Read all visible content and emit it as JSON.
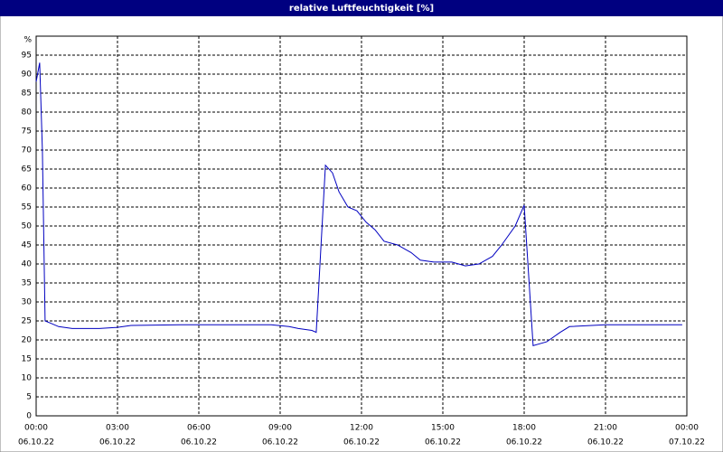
{
  "chart_data": {
    "type": "line",
    "title": "relative Luftfeuchtigkeit [%]",
    "y_unit": "%",
    "x": [
      0,
      0.13,
      0.23,
      0.33,
      0.5,
      0.83,
      1.33,
      2.33,
      3,
      3.5,
      5.33,
      8.67,
      9.33,
      9.67,
      10.17,
      10.33,
      10.67,
      10.93,
      11.17,
      11.5,
      11.83,
      12.17,
      12.5,
      12.83,
      13.33,
      13.83,
      14.17,
      14.67,
      15.33,
      15.83,
      16.33,
      16.83,
      17.17,
      17.67,
      18,
      18.33,
      18.83,
      19.33,
      19.67,
      21,
      23.83
    ],
    "series": [
      {
        "name": "relative Luftfeuchtigkeit",
        "color": "#0000c0",
        "values": [
          88,
          93,
          70,
          25,
          24.5,
          23.5,
          23,
          23,
          23.3,
          23.8,
          24,
          24,
          23.5,
          23,
          22.5,
          22,
          66,
          64,
          59,
          55,
          54,
          51,
          49,
          46,
          45,
          43,
          41,
          40.5,
          40.5,
          39.5,
          40,
          42,
          45,
          50,
          55.5,
          18.5,
          19.5,
          22,
          23.5,
          24,
          24
        ]
      }
    ],
    "xlim": [
      0,
      24
    ],
    "ylim": [
      0,
      100
    ],
    "xticks": [
      {
        "value": 0,
        "label": "00:00",
        "date": "06.10.22"
      },
      {
        "value": 3,
        "label": "03:00",
        "date": "06.10.22"
      },
      {
        "value": 6,
        "label": "06:00",
        "date": "06.10.22"
      },
      {
        "value": 9,
        "label": "09:00",
        "date": "06.10.22"
      },
      {
        "value": 12,
        "label": "12:00",
        "date": "06.10.22"
      },
      {
        "value": 15,
        "label": "15:00",
        "date": "06.10.22"
      },
      {
        "value": 18,
        "label": "18:00",
        "date": "06.10.22"
      },
      {
        "value": 21,
        "label": "21:00",
        "date": "06.10.22"
      },
      {
        "value": 24,
        "label": "00:00",
        "date": "07.10.22"
      }
    ],
    "yticks": [
      0,
      5,
      10,
      15,
      20,
      25,
      30,
      35,
      40,
      45,
      50,
      55,
      60,
      65,
      70,
      75,
      80,
      85,
      90,
      95
    ],
    "grid": true
  }
}
